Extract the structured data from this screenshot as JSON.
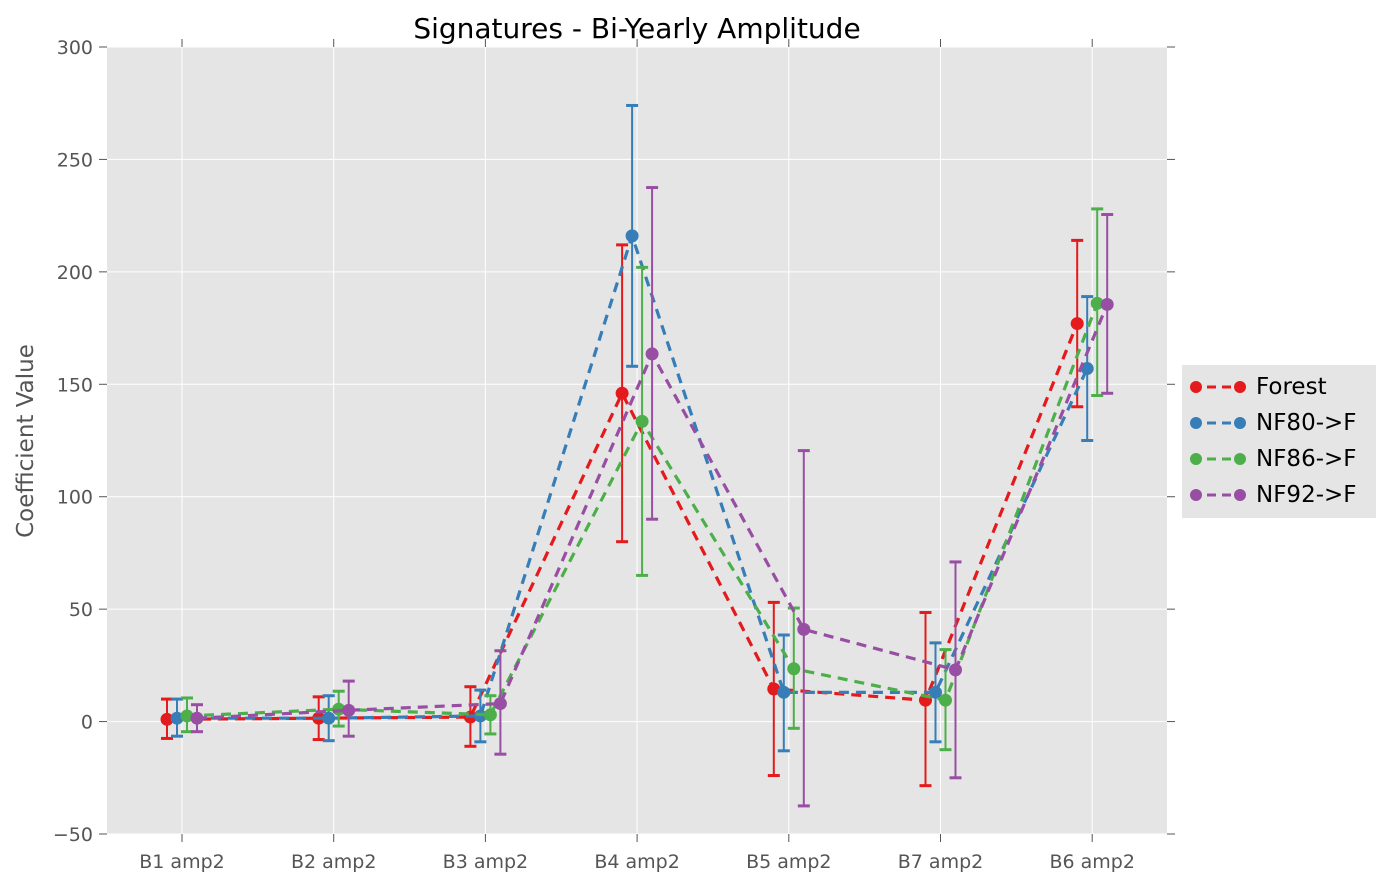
{
  "chart_data": {
    "type": "line",
    "title": "Signatures - Bi-Yearly Amplitude",
    "xlabel": "",
    "ylabel": "Coefficient Value",
    "ylim": [
      -50,
      300
    ],
    "yticks": [
      "300",
      "250",
      "200",
      "150",
      "100",
      "50",
      "0",
      "−50"
    ],
    "categories": [
      "B1 amp2",
      "B2 amp2",
      "B3 amp2",
      "B4 amp2",
      "B5 amp2",
      "B7 amp2",
      "B6 amp2"
    ],
    "grid": true,
    "legend_position": "right",
    "series": [
      {
        "name": "Forest",
        "color": "#e41a1c",
        "values": [
          1,
          1.5,
          2,
          146,
          14.5,
          9.5,
          177
        ],
        "err_low": [
          -7.5,
          -8,
          -11,
          80,
          -24,
          -28.5,
          140
        ],
        "err_high": [
          10,
          11,
          15.5,
          212,
          53,
          48.5,
          214
        ]
      },
      {
        "name": "NF80->F",
        "color": "#377eb8",
        "values": [
          1.5,
          1.5,
          2.5,
          216,
          13,
          13,
          157
        ],
        "err_low": [
          -6.5,
          -8.5,
          -9,
          158,
          -13,
          -9,
          125
        ],
        "err_high": [
          10,
          11.5,
          14,
          274,
          38.5,
          35,
          189
        ]
      },
      {
        "name": "NF86->F",
        "color": "#4daf4a",
        "values": [
          2.5,
          5.5,
          3,
          133.5,
          23.5,
          9.5,
          186
        ],
        "err_low": [
          -4.5,
          -2,
          -5.5,
          65,
          -3,
          -12.5,
          145
        ],
        "err_high": [
          10.5,
          13.5,
          11.5,
          202,
          50.5,
          32,
          228
        ]
      },
      {
        "name": "NF92->F",
        "color": "#984ea3",
        "values": [
          1.5,
          5,
          8,
          163.5,
          41,
          23,
          185.5
        ],
        "err_low": [
          -4.5,
          -6.5,
          -14.5,
          90,
          -37.5,
          -25,
          146
        ],
        "err_high": [
          7.5,
          18,
          31.5,
          237.5,
          120.5,
          71,
          225.5
        ]
      }
    ]
  }
}
